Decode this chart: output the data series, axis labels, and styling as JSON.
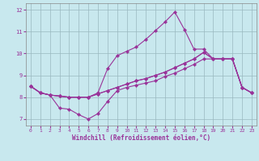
{
  "xlabel": "Windchill (Refroidissement éolien,°C)",
  "xlim": [
    -0.5,
    23.5
  ],
  "ylim": [
    6.7,
    12.3
  ],
  "yticks": [
    7,
    8,
    9,
    10,
    11,
    12
  ],
  "xticks": [
    0,
    1,
    2,
    3,
    4,
    5,
    6,
    7,
    8,
    9,
    10,
    11,
    12,
    13,
    14,
    15,
    16,
    17,
    18,
    19,
    20,
    21,
    22,
    23
  ],
  "background_color": "#c8e8ee",
  "line_color": "#993399",
  "grid_color": "#99b8c0",
  "series": [
    [
      8.5,
      8.2,
      8.1,
      8.05,
      8.0,
      8.0,
      8.0,
      8.15,
      8.3,
      8.45,
      8.6,
      8.75,
      8.85,
      9.0,
      9.15,
      9.35,
      9.55,
      9.75,
      10.05,
      9.75,
      9.75,
      9.75,
      8.45,
      8.2
    ],
    [
      8.5,
      8.2,
      8.1,
      8.05,
      8.0,
      8.0,
      8.0,
      8.15,
      8.3,
      8.45,
      8.6,
      8.75,
      8.85,
      9.0,
      9.15,
      9.35,
      9.55,
      9.75,
      10.05,
      9.75,
      9.75,
      9.75,
      8.45,
      8.2
    ],
    [
      8.5,
      8.2,
      8.1,
      7.5,
      7.45,
      7.2,
      7.0,
      7.25,
      7.8,
      8.3,
      8.45,
      8.55,
      8.65,
      8.75,
      8.95,
      9.1,
      9.3,
      9.5,
      9.75,
      9.75,
      9.75,
      9.75,
      8.45,
      8.2
    ],
    [
      8.5,
      8.2,
      8.1,
      8.05,
      8.0,
      8.0,
      8.0,
      8.2,
      9.3,
      9.9,
      10.1,
      10.3,
      10.65,
      11.05,
      11.45,
      11.9,
      11.1,
      10.2,
      10.2,
      9.75,
      9.75,
      9.75,
      8.45,
      8.2
    ]
  ],
  "x": [
    0,
    1,
    2,
    3,
    4,
    5,
    6,
    7,
    8,
    9,
    10,
    11,
    12,
    13,
    14,
    15,
    16,
    17,
    18,
    19,
    20,
    21,
    22,
    23
  ],
  "figsize": [
    3.2,
    2.0
  ],
  "dpi": 100,
  "tick_fontsize": 5,
  "xlabel_fontsize": 5.5,
  "linewidth": 0.8,
  "markersize": 2.2
}
